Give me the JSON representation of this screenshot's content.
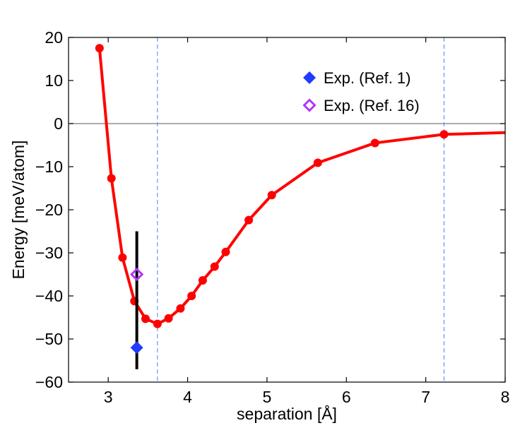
{
  "chart_data": {
    "type": "line",
    "title": "",
    "xlabel": "separation [Å]",
    "ylabel": "Energy [meV/atom]",
    "xlim": [
      2.5,
      8
    ],
    "ylim": [
      -60,
      20
    ],
    "xticks": [
      3,
      4,
      5,
      6,
      7,
      8
    ],
    "yticks": [
      -60,
      -50,
      -40,
      -30,
      -20,
      -10,
      0,
      10,
      20
    ],
    "xtick_labels": [
      "3",
      "4",
      "5",
      "6",
      "7",
      "8"
    ],
    "ytick_labels": [
      "−60",
      "−50",
      "−40",
      "−30",
      "−20",
      "−10",
      "0",
      "10",
      "20"
    ],
    "grid": false,
    "legend_position": "top-right",
    "series": [
      {
        "name": "",
        "kind": "line-with-markers",
        "color": "#ff0000",
        "x": [
          2.89,
          3.04,
          3.18,
          3.33,
          3.47,
          3.62,
          3.76,
          3.91,
          4.05,
          4.19,
          4.34,
          4.48,
          4.77,
          5.06,
          5.64,
          6.36,
          7.23,
          8.0
        ],
        "y": [
          17.5,
          -12.7,
          -31.1,
          -41.2,
          -45.3,
          -46.5,
          -45.2,
          -42.9,
          -40.0,
          -36.4,
          -33.2,
          -29.8,
          -22.4,
          -16.6,
          -9.1,
          -4.5,
          -2.5,
          -2.1
        ],
        "markers_on_all_but_last": true
      },
      {
        "name": "Exp. (Ref. 1)",
        "kind": "marker",
        "marker": "filled-diamond",
        "color": "#1f3cff",
        "x": [
          3.36
        ],
        "y": [
          -52.0
        ]
      },
      {
        "name": "Exp. (Ref. 16)",
        "kind": "marker",
        "marker": "open-diamond",
        "color": "#b233ff",
        "x": [
          3.36
        ],
        "y": [
          -35.0
        ]
      }
    ],
    "error_bar": {
      "x": 3.36,
      "y_low": -57,
      "y_high": -25,
      "color": "#000000"
    },
    "reference_lines": {
      "horizontal_zero": {
        "y": 0,
        "color": "#7a7a7a"
      },
      "vertical_dashed": {
        "x": [
          3.62,
          7.23
        ],
        "color": "#5a78ff"
      }
    }
  }
}
